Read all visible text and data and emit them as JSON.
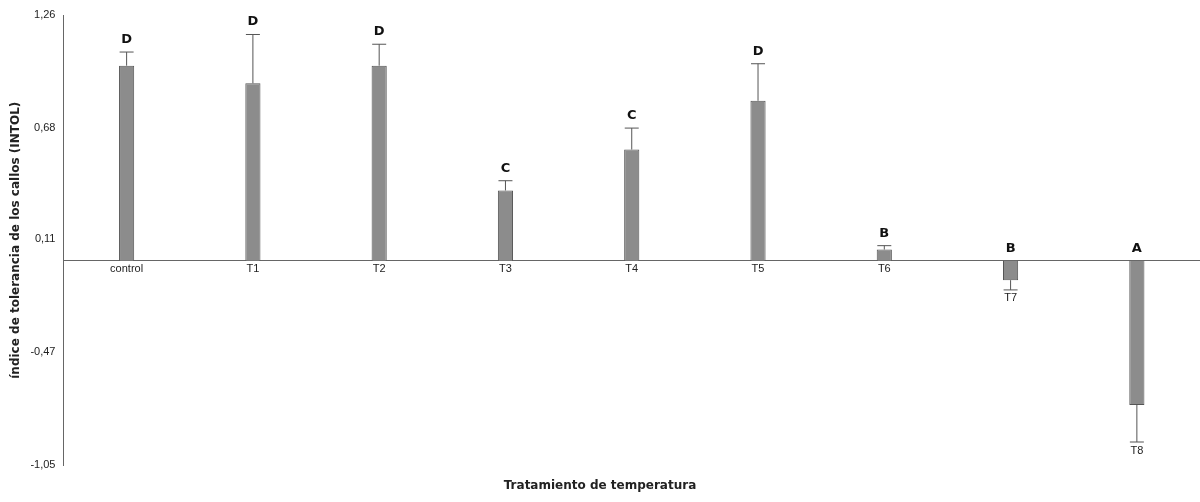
{
  "chart_data": {
    "type": "bar",
    "xlabel": "Tratamiento de temperatura",
    "ylabel": "índice de tolerancia de los callos (INTOL)",
    "categories": [
      "control",
      "T1",
      "T2",
      "T3",
      "T4",
      "T5",
      "T6",
      "T7",
      "T8"
    ],
    "values": [
      1.0,
      0.91,
      1.0,
      0.36,
      0.57,
      0.82,
      0.057,
      -0.1,
      -0.74
    ],
    "errors": [
      [
        1.0,
        1.07
      ],
      [
        0.91,
        1.16
      ],
      [
        1.0,
        1.11
      ],
      [
        0.36,
        0.41
      ],
      [
        0.57,
        0.68
      ],
      [
        0.82,
        1.01
      ],
      [
        0.057,
        0.077
      ],
      [
        -0.15,
        -0.1
      ],
      [
        -0.93,
        -0.74
      ]
    ],
    "color": "#8c8c8c",
    "ylim": [
      -1.05,
      1.26
    ],
    "yticks": [
      {
        "value": 1.26,
        "label": "1,26"
      },
      {
        "value": 0.68,
        "label": "0,68"
      },
      {
        "value": 0.11,
        "label": "0,11"
      },
      {
        "value": -0.47,
        "label": "-0,47"
      },
      {
        "value": -1.05,
        "label": "-1,05"
      }
    ],
    "grid": false,
    "legend": false,
    "annotations": [
      {
        "text": "D",
        "x": "control",
        "y": 1.07
      },
      {
        "text": "D",
        "x": "T1",
        "y": 1.16
      },
      {
        "text": "D",
        "x": "T2",
        "y": 1.11
      },
      {
        "text": "C",
        "x": "T3",
        "y": 0.41
      },
      {
        "text": "C",
        "x": "T4",
        "y": 0.68
      },
      {
        "text": "D",
        "x": "T5",
        "y": 1.01
      },
      {
        "text": "B",
        "x": "T6",
        "y": 0.077
      },
      {
        "text": "B",
        "x": "T7",
        "y": 0
      },
      {
        "text": "A",
        "x": "T8",
        "y": 0
      }
    ]
  }
}
